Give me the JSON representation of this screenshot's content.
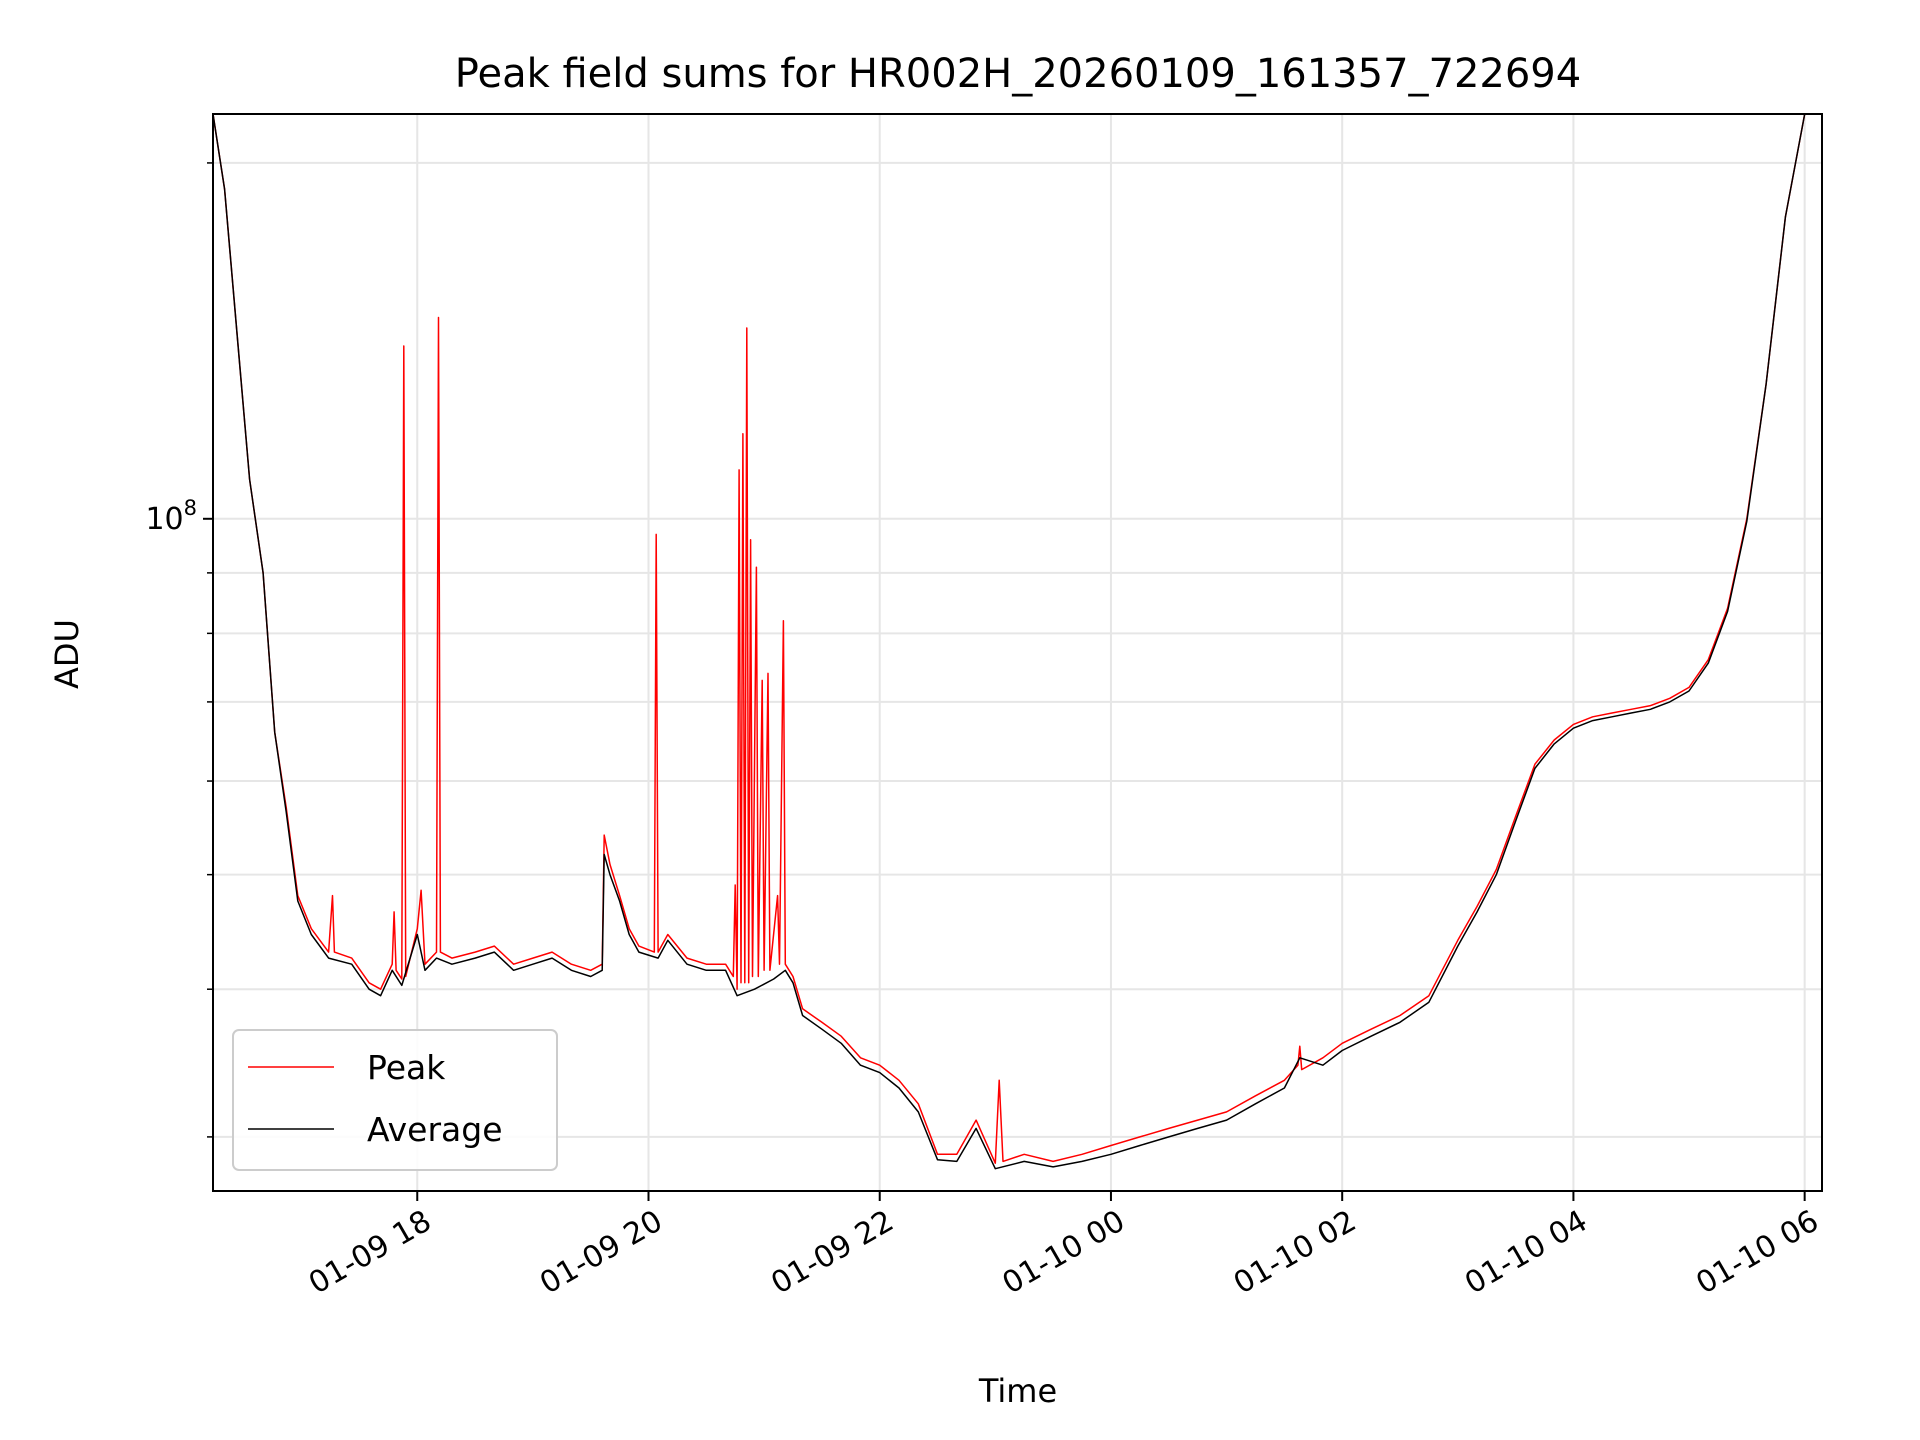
{
  "chart_data": {
    "type": "line",
    "title": "Peak field sums for HR002H_20260109_161357_722694",
    "xlabel": "Time",
    "ylabel": "ADU",
    "y_scale": "log",
    "ylim": [
      27000000,
      220000000
    ],
    "xlim": [
      "2026-01-09 16:14",
      "2026-01-10 06:09"
    ],
    "grid": true,
    "legend_position": "lower-left",
    "x_ticks": [
      {
        "value": "2026-01-09 18:00",
        "label": "01-09 18"
      },
      {
        "value": "2026-01-09 20:00",
        "label": "01-09 20"
      },
      {
        "value": "2026-01-09 22:00",
        "label": "01-09 22"
      },
      {
        "value": "2026-01-10 00:00",
        "label": "01-10 00"
      },
      {
        "value": "2026-01-10 02:00",
        "label": "01-10 02"
      },
      {
        "value": "2026-01-10 04:00",
        "label": "01-10 04"
      },
      {
        "value": "2026-01-10 06:00",
        "label": "01-10 06"
      }
    ],
    "y_ticks": [
      {
        "value": 100000000,
        "label_base": "10",
        "label_exp": "8"
      }
    ],
    "y_minor_ticks": [
      30000000,
      40000000,
      50000000,
      60000000,
      70000000,
      80000000,
      90000000,
      200000000
    ],
    "series": [
      {
        "name": "Peak",
        "color": "#ff0000",
        "points": [
          [
            "2026-01-09 16:14",
            220000000
          ],
          [
            "2026-01-09 16:20",
            190000000
          ],
          [
            "2026-01-09 16:27",
            140000000
          ],
          [
            "2026-01-09 16:33",
            108000000
          ],
          [
            "2026-01-09 16:40",
            90000000
          ],
          [
            "2026-01-09 16:46",
            66000000
          ],
          [
            "2026-01-09 16:52",
            57000000
          ],
          [
            "2026-01-09 16:58",
            48000000
          ],
          [
            "2026-01-09 17:05",
            45000000
          ],
          [
            "2026-01-09 17:14",
            43000000
          ],
          [
            "2026-01-09 17:16",
            48000000
          ],
          [
            "2026-01-09 17:17",
            43000000
          ],
          [
            "2026-01-09 17:26",
            42500000
          ],
          [
            "2026-01-09 17:35",
            40500000
          ],
          [
            "2026-01-09 17:41",
            40000000
          ],
          [
            "2026-01-09 17:47",
            42000000
          ],
          [
            "2026-01-09 17:48",
            46500000
          ],
          [
            "2026-01-09 17:49",
            41500000
          ],
          [
            "2026-01-09 17:52",
            40800000
          ],
          [
            "2026-01-09 17:53",
            140000000
          ],
          [
            "2026-01-09 17:54",
            41000000
          ],
          [
            "2026-01-09 18:00",
            45000000
          ],
          [
            "2026-01-09 18:02",
            48500000
          ],
          [
            "2026-01-09 18:04",
            42000000
          ],
          [
            "2026-01-09 18:10",
            43000000
          ],
          [
            "2026-01-09 18:11",
            148000000
          ],
          [
            "2026-01-09 18:12",
            43000000
          ],
          [
            "2026-01-09 18:18",
            42500000
          ],
          [
            "2026-01-09 18:30",
            43000000
          ],
          [
            "2026-01-09 18:40",
            43500000
          ],
          [
            "2026-01-09 18:50",
            42000000
          ],
          [
            "2026-01-09 19:00",
            42500000
          ],
          [
            "2026-01-09 19:10",
            43000000
          ],
          [
            "2026-01-09 19:20",
            42000000
          ],
          [
            "2026-01-09 19:30",
            41500000
          ],
          [
            "2026-01-09 19:36",
            42000000
          ],
          [
            "2026-01-09 19:37",
            54000000
          ],
          [
            "2026-01-09 19:40",
            51000000
          ],
          [
            "2026-01-09 19:45",
            48000000
          ],
          [
            "2026-01-09 19:50",
            45000000
          ],
          [
            "2026-01-09 19:55",
            43500000
          ],
          [
            "2026-01-09 20:03",
            43000000
          ],
          [
            "2026-01-09 20:04",
            97000000
          ],
          [
            "2026-01-09 20:05",
            43000000
          ],
          [
            "2026-01-09 20:10",
            44500000
          ],
          [
            "2026-01-09 20:20",
            42500000
          ],
          [
            "2026-01-09 20:30",
            42000000
          ],
          [
            "2026-01-09 20:40",
            42000000
          ],
          [
            "2026-01-09 20:44",
            41000000
          ],
          [
            "2026-01-09 20:45",
            49000000
          ],
          [
            "2026-01-09 20:46",
            40000000
          ],
          [
            "2026-01-09 20:47",
            110000000
          ],
          [
            "2026-01-09 20:48",
            40500000
          ],
          [
            "2026-01-09 20:49",
            118000000
          ],
          [
            "2026-01-09 20:50",
            40500000
          ],
          [
            "2026-01-09 20:51",
            145000000
          ],
          [
            "2026-01-09 20:52",
            40500000
          ],
          [
            "2026-01-09 20:53",
            96000000
          ],
          [
            "2026-01-09 20:54",
            41000000
          ],
          [
            "2026-01-09 20:56",
            91000000
          ],
          [
            "2026-01-09 20:57",
            41000000
          ],
          [
            "2026-01-09 20:59",
            73000000
          ],
          [
            "2026-01-09 21:00",
            41500000
          ],
          [
            "2026-01-09 21:02",
            74000000
          ],
          [
            "2026-01-09 21:03",
            41500000
          ],
          [
            "2026-01-09 21:07",
            48000000
          ],
          [
            "2026-01-09 21:08",
            42000000
          ],
          [
            "2026-01-09 21:10",
            82000000
          ],
          [
            "2026-01-09 21:11",
            42000000
          ],
          [
            "2026-01-09 21:15",
            41000000
          ],
          [
            "2026-01-09 21:20",
            38500000
          ],
          [
            "2026-01-09 21:30",
            37500000
          ],
          [
            "2026-01-09 21:40",
            36500000
          ],
          [
            "2026-01-09 21:50",
            35000000
          ],
          [
            "2026-01-09 22:00",
            34500000
          ],
          [
            "2026-01-09 22:10",
            33500000
          ],
          [
            "2026-01-09 22:20",
            32000000
          ],
          [
            "2026-01-09 22:30",
            29000000
          ],
          [
            "2026-01-09 22:40",
            29000000
          ],
          [
            "2026-01-09 22:50",
            31000000
          ],
          [
            "2026-01-09 23:00",
            28500000
          ],
          [
            "2026-01-09 23:02",
            33500000
          ],
          [
            "2026-01-09 23:04",
            28600000
          ],
          [
            "2026-01-09 23:15",
            29000000
          ],
          [
            "2026-01-09 23:30",
            28600000
          ],
          [
            "2026-01-09 23:45",
            29000000
          ],
          [
            "2026-01-10 00:00",
            29500000
          ],
          [
            "2026-01-10 00:15",
            30000000
          ],
          [
            "2026-01-10 00:30",
            30500000
          ],
          [
            "2026-01-10 00:45",
            31000000
          ],
          [
            "2026-01-10 01:00",
            31500000
          ],
          [
            "2026-01-10 01:15",
            32500000
          ],
          [
            "2026-01-10 01:30",
            33500000
          ],
          [
            "2026-01-10 01:37",
            34500000
          ],
          [
            "2026-01-10 01:38",
            35800000
          ],
          [
            "2026-01-10 01:39",
            34200000
          ],
          [
            "2026-01-10 01:50",
            35000000
          ],
          [
            "2026-01-10 02:00",
            36000000
          ],
          [
            "2026-01-10 02:15",
            37000000
          ],
          [
            "2026-01-10 02:30",
            38000000
          ],
          [
            "2026-01-10 02:45",
            39500000
          ],
          [
            "2026-01-10 03:00",
            44000000
          ],
          [
            "2026-01-10 03:10",
            47000000
          ],
          [
            "2026-01-10 03:20",
            50500000
          ],
          [
            "2026-01-10 03:30",
            56000000
          ],
          [
            "2026-01-10 03:40",
            62000000
          ],
          [
            "2026-01-10 03:50",
            65000000
          ],
          [
            "2026-01-10 04:00",
            67000000
          ],
          [
            "2026-01-10 04:10",
            68000000
          ],
          [
            "2026-01-10 04:20",
            68500000
          ],
          [
            "2026-01-10 04:30",
            69000000
          ],
          [
            "2026-01-10 04:40",
            69500000
          ],
          [
            "2026-01-10 04:50",
            70500000
          ],
          [
            "2026-01-10 05:00",
            72000000
          ],
          [
            "2026-01-10 05:10",
            76000000
          ],
          [
            "2026-01-10 05:20",
            84000000
          ],
          [
            "2026-01-10 05:30",
            100000000
          ],
          [
            "2026-01-10 05:40",
            130000000
          ],
          [
            "2026-01-10 05:50",
            180000000
          ],
          [
            "2026-01-10 06:00",
            220000000
          ]
        ]
      },
      {
        "name": "Average",
        "color": "#000000",
        "points": [
          [
            "2026-01-09 16:14",
            220000000
          ],
          [
            "2026-01-09 16:20",
            190000000
          ],
          [
            "2026-01-09 16:27",
            140000000
          ],
          [
            "2026-01-09 16:33",
            108000000
          ],
          [
            "2026-01-09 16:40",
            90000000
          ],
          [
            "2026-01-09 16:46",
            66000000
          ],
          [
            "2026-01-09 16:52",
            56500000
          ],
          [
            "2026-01-09 16:58",
            47500000
          ],
          [
            "2026-01-09 17:05",
            44500000
          ],
          [
            "2026-01-09 17:14",
            42500000
          ],
          [
            "2026-01-09 17:26",
            42000000
          ],
          [
            "2026-01-09 17:35",
            40000000
          ],
          [
            "2026-01-09 17:41",
            39500000
          ],
          [
            "2026-01-09 17:47",
            41500000
          ],
          [
            "2026-01-09 17:52",
            40300000
          ],
          [
            "2026-01-09 18:00",
            44500000
          ],
          [
            "2026-01-09 18:04",
            41500000
          ],
          [
            "2026-01-09 18:10",
            42500000
          ],
          [
            "2026-01-09 18:18",
            42000000
          ],
          [
            "2026-01-09 18:30",
            42500000
          ],
          [
            "2026-01-09 18:40",
            43000000
          ],
          [
            "2026-01-09 18:50",
            41500000
          ],
          [
            "2026-01-09 19:00",
            42000000
          ],
          [
            "2026-01-09 19:10",
            42500000
          ],
          [
            "2026-01-09 19:20",
            41500000
          ],
          [
            "2026-01-09 19:30",
            41000000
          ],
          [
            "2026-01-09 19:36",
            41500000
          ],
          [
            "2026-01-09 19:37",
            52000000
          ],
          [
            "2026-01-09 19:40",
            50000000
          ],
          [
            "2026-01-09 19:45",
            47500000
          ],
          [
            "2026-01-09 19:50",
            44500000
          ],
          [
            "2026-01-09 19:55",
            43000000
          ],
          [
            "2026-01-09 20:05",
            42500000
          ],
          [
            "2026-01-09 20:10",
            44000000
          ],
          [
            "2026-01-09 20:20",
            42000000
          ],
          [
            "2026-01-09 20:30",
            41500000
          ],
          [
            "2026-01-09 20:40",
            41500000
          ],
          [
            "2026-01-09 20:46",
            39500000
          ],
          [
            "2026-01-09 20:55",
            40000000
          ],
          [
            "2026-01-09 21:05",
            40800000
          ],
          [
            "2026-01-09 21:11",
            41500000
          ],
          [
            "2026-01-09 21:15",
            40500000
          ],
          [
            "2026-01-09 21:20",
            38000000
          ],
          [
            "2026-01-09 21:30",
            37000000
          ],
          [
            "2026-01-09 21:40",
            36000000
          ],
          [
            "2026-01-09 21:50",
            34500000
          ],
          [
            "2026-01-09 22:00",
            34000000
          ],
          [
            "2026-01-09 22:10",
            33000000
          ],
          [
            "2026-01-09 22:20",
            31500000
          ],
          [
            "2026-01-09 22:30",
            28700000
          ],
          [
            "2026-01-09 22:40",
            28600000
          ],
          [
            "2026-01-09 22:50",
            30500000
          ],
          [
            "2026-01-09 23:00",
            28200000
          ],
          [
            "2026-01-09 23:15",
            28600000
          ],
          [
            "2026-01-09 23:30",
            28300000
          ],
          [
            "2026-01-09 23:45",
            28600000
          ],
          [
            "2026-01-10 00:00",
            29000000
          ],
          [
            "2026-01-10 00:15",
            29500000
          ],
          [
            "2026-01-10 00:30",
            30000000
          ],
          [
            "2026-01-10 00:45",
            30500000
          ],
          [
            "2026-01-10 01:00",
            31000000
          ],
          [
            "2026-01-10 01:15",
            32000000
          ],
          [
            "2026-01-10 01:30",
            33000000
          ],
          [
            "2026-01-10 01:38",
            35000000
          ],
          [
            "2026-01-10 01:50",
            34500000
          ],
          [
            "2026-01-10 02:00",
            35500000
          ],
          [
            "2026-01-10 02:15",
            36500000
          ],
          [
            "2026-01-10 02:30",
            37500000
          ],
          [
            "2026-01-10 02:45",
            39000000
          ],
          [
            "2026-01-10 03:00",
            43500000
          ],
          [
            "2026-01-10 03:10",
            46500000
          ],
          [
            "2026-01-10 03:20",
            50000000
          ],
          [
            "2026-01-10 03:30",
            55500000
          ],
          [
            "2026-01-10 03:40",
            61500000
          ],
          [
            "2026-01-10 03:50",
            64500000
          ],
          [
            "2026-01-10 04:00",
            66500000
          ],
          [
            "2026-01-10 04:10",
            67500000
          ],
          [
            "2026-01-10 04:20",
            68000000
          ],
          [
            "2026-01-10 04:30",
            68500000
          ],
          [
            "2026-01-10 04:40",
            69000000
          ],
          [
            "2026-01-10 04:50",
            70000000
          ],
          [
            "2026-01-10 05:00",
            71500000
          ],
          [
            "2026-01-10 05:10",
            75500000
          ],
          [
            "2026-01-10 05:20",
            83500000
          ],
          [
            "2026-01-10 05:30",
            99500000
          ],
          [
            "2026-01-10 05:40",
            130000000
          ],
          [
            "2026-01-10 05:50",
            180000000
          ],
          [
            "2026-01-10 06:00",
            220000000
          ]
        ]
      }
    ]
  }
}
